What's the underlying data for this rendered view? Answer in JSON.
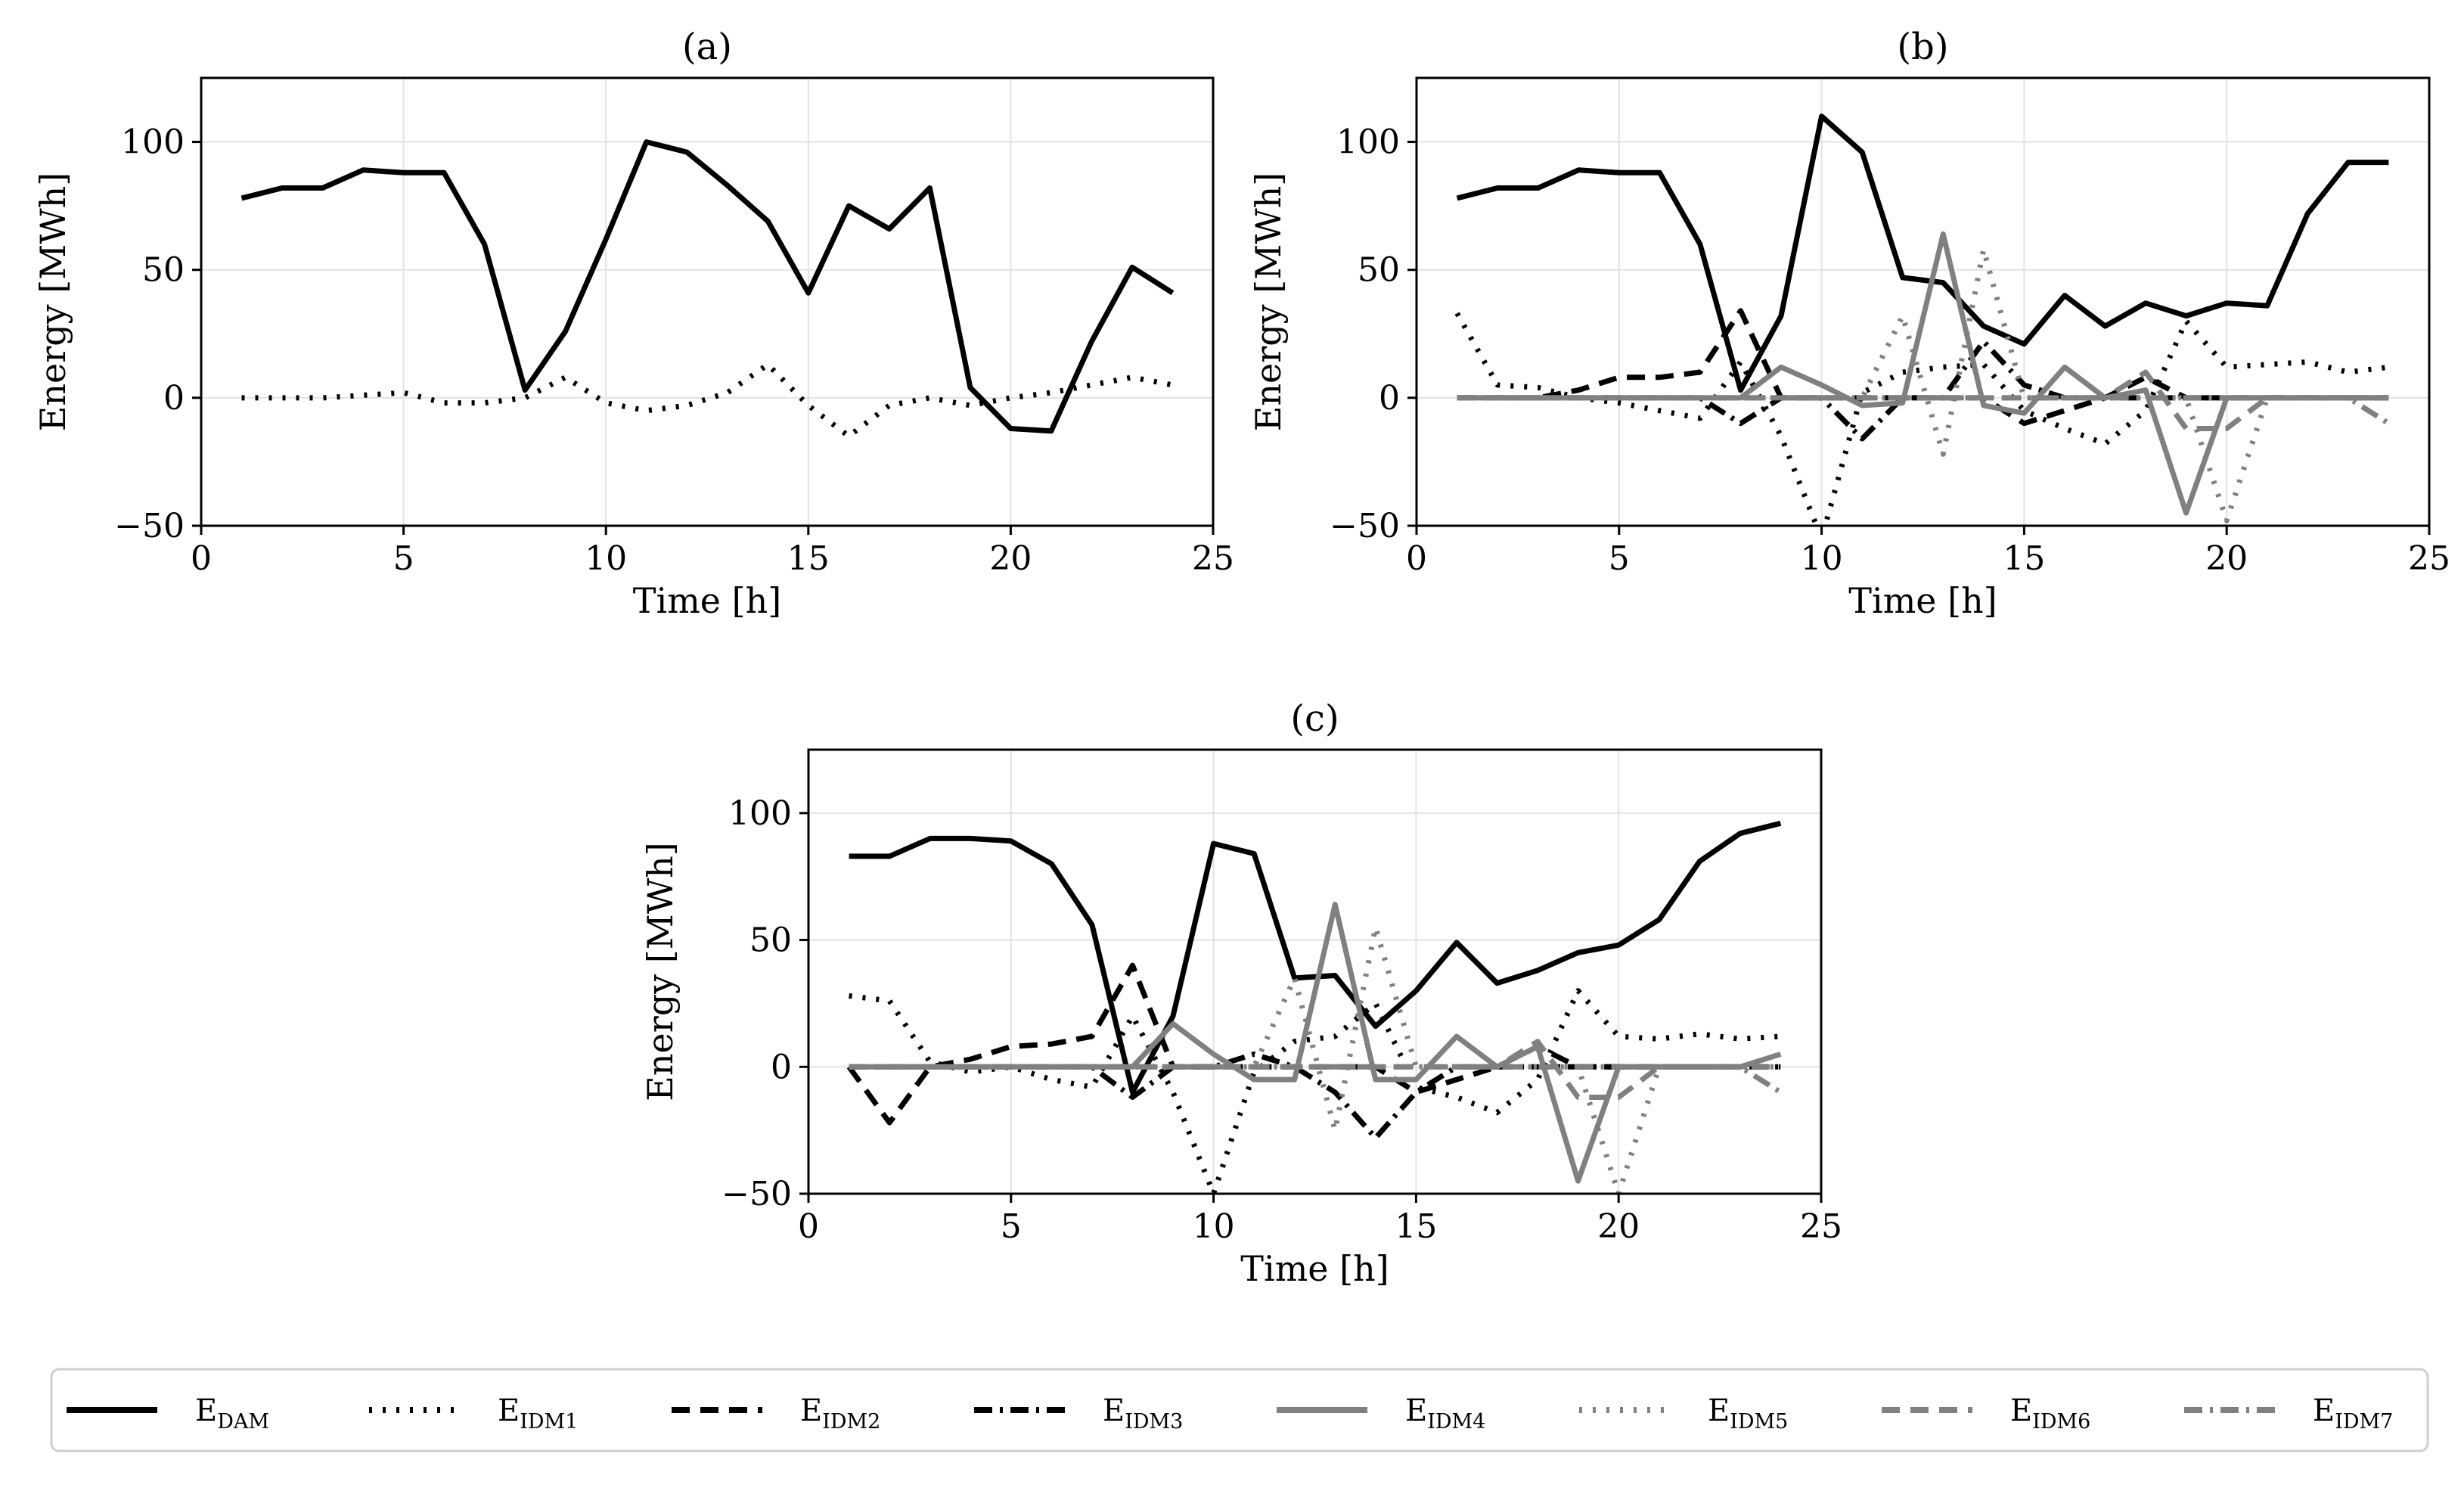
{
  "figure": {
    "legend": [
      {
        "key": "dam",
        "main": "E",
        "sub": "DAM",
        "color": "#000000",
        "dash": "solid"
      },
      {
        "key": "idm1",
        "main": "E",
        "sub": "IDM1",
        "color": "#000000",
        "dash": "dot"
      },
      {
        "key": "idm2",
        "main": "E",
        "sub": "IDM2",
        "color": "#000000",
        "dash": "dash"
      },
      {
        "key": "idm3",
        "main": "E",
        "sub": "IDM3",
        "color": "#000000",
        "dash": "dashdot"
      },
      {
        "key": "idm4",
        "main": "E",
        "sub": "IDM4",
        "color": "#808080",
        "dash": "solid"
      },
      {
        "key": "idm5",
        "main": "E",
        "sub": "IDM5",
        "color": "#808080",
        "dash": "dot"
      },
      {
        "key": "idm6",
        "main": "E",
        "sub": "IDM6",
        "color": "#808080",
        "dash": "dash"
      },
      {
        "key": "idm7",
        "main": "E",
        "sub": "IDM7",
        "color": "#808080",
        "dash": "dashdot"
      }
    ]
  },
  "chart_data": [
    {
      "id": "a",
      "type": "line",
      "title": "(a)",
      "xlabel": "Time [h]",
      "ylabel": "Energy [MWh]",
      "xlim": [
        0,
        25
      ],
      "ylim": [
        -50,
        125
      ],
      "xticks": [
        0,
        5,
        10,
        15,
        20,
        25
      ],
      "yticks": [
        -50,
        0,
        50,
        100
      ],
      "ytick_labels": [
        "−50",
        "0",
        "50",
        "100"
      ],
      "grid": true,
      "x": [
        1,
        2,
        3,
        4,
        5,
        6,
        7,
        8,
        9,
        10,
        11,
        12,
        13,
        14,
        15,
        16,
        17,
        18,
        19,
        20,
        21,
        22,
        23,
        24
      ],
      "series": [
        {
          "name": "E_DAM",
          "key": "dam",
          "values": [
            78,
            82,
            82,
            89,
            88,
            88,
            60,
            3,
            26,
            62,
            100,
            96,
            83,
            69,
            41,
            75,
            66,
            82,
            4,
            -12,
            -13,
            22,
            51,
            41
          ]
        },
        {
          "name": "E_IDM1",
          "key": "idm1",
          "values": [
            0,
            0,
            0,
            1,
            2,
            -2,
            -2,
            0,
            8,
            -2,
            -5,
            -3,
            2,
            13,
            -3,
            -15,
            -3,
            0,
            -3,
            0,
            2,
            5,
            8,
            5
          ]
        }
      ]
    },
    {
      "id": "b",
      "type": "line",
      "title": "(b)",
      "xlabel": "Time [h]",
      "ylabel": "Energy [MWh]",
      "xlim": [
        0,
        25
      ],
      "ylim": [
        -50,
        125
      ],
      "xticks": [
        0,
        5,
        10,
        15,
        20,
        25
      ],
      "yticks": [
        -50,
        0,
        50,
        100
      ],
      "ytick_labels": [
        "−50",
        "0",
        "50",
        "100"
      ],
      "grid": true,
      "x": [
        1,
        2,
        3,
        4,
        5,
        6,
        7,
        8,
        9,
        10,
        11,
        12,
        13,
        14,
        15,
        16,
        17,
        18,
        19,
        20,
        21,
        22,
        23,
        24
      ],
      "series": [
        {
          "name": "E_DAM",
          "key": "dam",
          "values": [
            78,
            82,
            82,
            89,
            88,
            88,
            60,
            3,
            32,
            110,
            96,
            47,
            45,
            28,
            21,
            40,
            28,
            37,
            32,
            37,
            36,
            72,
            92,
            92
          ]
        },
        {
          "name": "E_IDM1",
          "key": "idm1",
          "values": [
            33,
            5,
            4,
            0,
            -2,
            -5,
            -8,
            14,
            -15,
            -55,
            2,
            10,
            12,
            13,
            -5,
            -12,
            -18,
            -5,
            30,
            12,
            13,
            14,
            10,
            12
          ]
        },
        {
          "name": "E_IDM2",
          "key": "idm2",
          "values": [
            0,
            0,
            0,
            3,
            8,
            8,
            10,
            34,
            0,
            0,
            0,
            0,
            0,
            0,
            -10,
            -5,
            0,
            8,
            0,
            0,
            0,
            0,
            0,
            0
          ]
        },
        {
          "name": "E_IDM3",
          "key": "idm3",
          "values": [
            0,
            0,
            0,
            0,
            0,
            0,
            0,
            -10,
            0,
            0,
            -16,
            0,
            0,
            22,
            5,
            0,
            0,
            0,
            0,
            0,
            0,
            0,
            0,
            0
          ]
        },
        {
          "name": "E_IDM4",
          "key": "idm4",
          "values": [
            0,
            0,
            0,
            0,
            0,
            0,
            0,
            0,
            12,
            5,
            -3,
            -2,
            64,
            -3,
            -6,
            12,
            0,
            3,
            -45,
            0,
            0,
            0,
            0,
            0
          ]
        },
        {
          "name": "E_IDM5",
          "key": "idm5",
          "values": [
            0,
            0,
            0,
            0,
            0,
            0,
            0,
            0,
            0,
            0,
            0,
            32,
            -22,
            58,
            0,
            0,
            0,
            0,
            0,
            -48,
            0,
            0,
            0,
            0
          ]
        },
        {
          "name": "E_IDM6",
          "key": "idm6",
          "values": [
            0,
            0,
            0,
            0,
            0,
            0,
            0,
            0,
            0,
            0,
            0,
            0,
            0,
            0,
            0,
            0,
            0,
            10,
            -12,
            -12,
            0,
            0,
            0,
            0
          ]
        },
        {
          "name": "E_IDM7",
          "key": "idm7",
          "values": [
            0,
            0,
            0,
            0,
            0,
            0,
            0,
            0,
            0,
            0,
            0,
            0,
            0,
            0,
            0,
            0,
            0,
            0,
            0,
            0,
            0,
            0,
            0,
            -10
          ]
        }
      ]
    },
    {
      "id": "c",
      "type": "line",
      "title": "(c)",
      "xlabel": "Time [h]",
      "ylabel": "Energy [MWh]",
      "xlim": [
        0,
        25
      ],
      "ylim": [
        -50,
        125
      ],
      "xticks": [
        0,
        5,
        10,
        15,
        20,
        25
      ],
      "yticks": [
        -50,
        0,
        50,
        100
      ],
      "ytick_labels": [
        "−50",
        "0",
        "50",
        "100"
      ],
      "grid": true,
      "x": [
        1,
        2,
        3,
        4,
        5,
        6,
        7,
        8,
        9,
        10,
        11,
        12,
        13,
        14,
        15,
        16,
        17,
        18,
        19,
        20,
        21,
        22,
        23,
        24
      ],
      "series": [
        {
          "name": "E_DAM",
          "key": "dam",
          "values": [
            83,
            83,
            90,
            90,
            89,
            80,
            56,
            -10,
            20,
            88,
            84,
            35,
            36,
            16,
            30,
            49,
            33,
            38,
            45,
            48,
            58,
            81,
            92,
            96
          ]
        },
        {
          "name": "E_IDM1",
          "key": "idm1",
          "values": [
            28,
            26,
            2,
            -2,
            0,
            -5,
            -8,
            20,
            -10,
            -50,
            -2,
            10,
            12,
            25,
            -8,
            -12,
            -18,
            -5,
            30,
            12,
            11,
            13,
            11,
            12
          ]
        },
        {
          "name": "E_IDM2",
          "key": "idm2",
          "values": [
            0,
            -22,
            0,
            3,
            8,
            9,
            12,
            40,
            0,
            0,
            0,
            0,
            0,
            0,
            -10,
            -5,
            0,
            8,
            0,
            0,
            0,
            0,
            0,
            0
          ]
        },
        {
          "name": "E_IDM3",
          "key": "idm3",
          "values": [
            0,
            0,
            0,
            0,
            0,
            0,
            0,
            -12,
            0,
            0,
            5,
            0,
            -10,
            -28,
            -10,
            0,
            0,
            0,
            0,
            0,
            0,
            0,
            0,
            0
          ]
        },
        {
          "name": "E_IDM4",
          "key": "idm4",
          "values": [
            0,
            0,
            0,
            0,
            0,
            0,
            0,
            0,
            17,
            5,
            -5,
            -5,
            64,
            -5,
            -5,
            12,
            0,
            8,
            -45,
            0,
            0,
            0,
            0,
            5
          ]
        },
        {
          "name": "E_IDM5",
          "key": "idm5",
          "values": [
            0,
            0,
            0,
            0,
            0,
            0,
            0,
            0,
            0,
            0,
            0,
            35,
            -25,
            55,
            0,
            0,
            0,
            0,
            0,
            -50,
            0,
            0,
            0,
            0
          ]
        },
        {
          "name": "E_IDM6",
          "key": "idm6",
          "values": [
            0,
            0,
            0,
            0,
            0,
            0,
            0,
            0,
            0,
            0,
            0,
            0,
            0,
            0,
            0,
            0,
            0,
            10,
            -12,
            -12,
            0,
            0,
            0,
            0
          ]
        },
        {
          "name": "E_IDM7",
          "key": "idm7",
          "values": [
            0,
            0,
            0,
            0,
            0,
            0,
            0,
            0,
            0,
            0,
            0,
            0,
            0,
            0,
            0,
            0,
            0,
            0,
            0,
            0,
            0,
            0,
            0,
            -10
          ]
        }
      ]
    }
  ]
}
